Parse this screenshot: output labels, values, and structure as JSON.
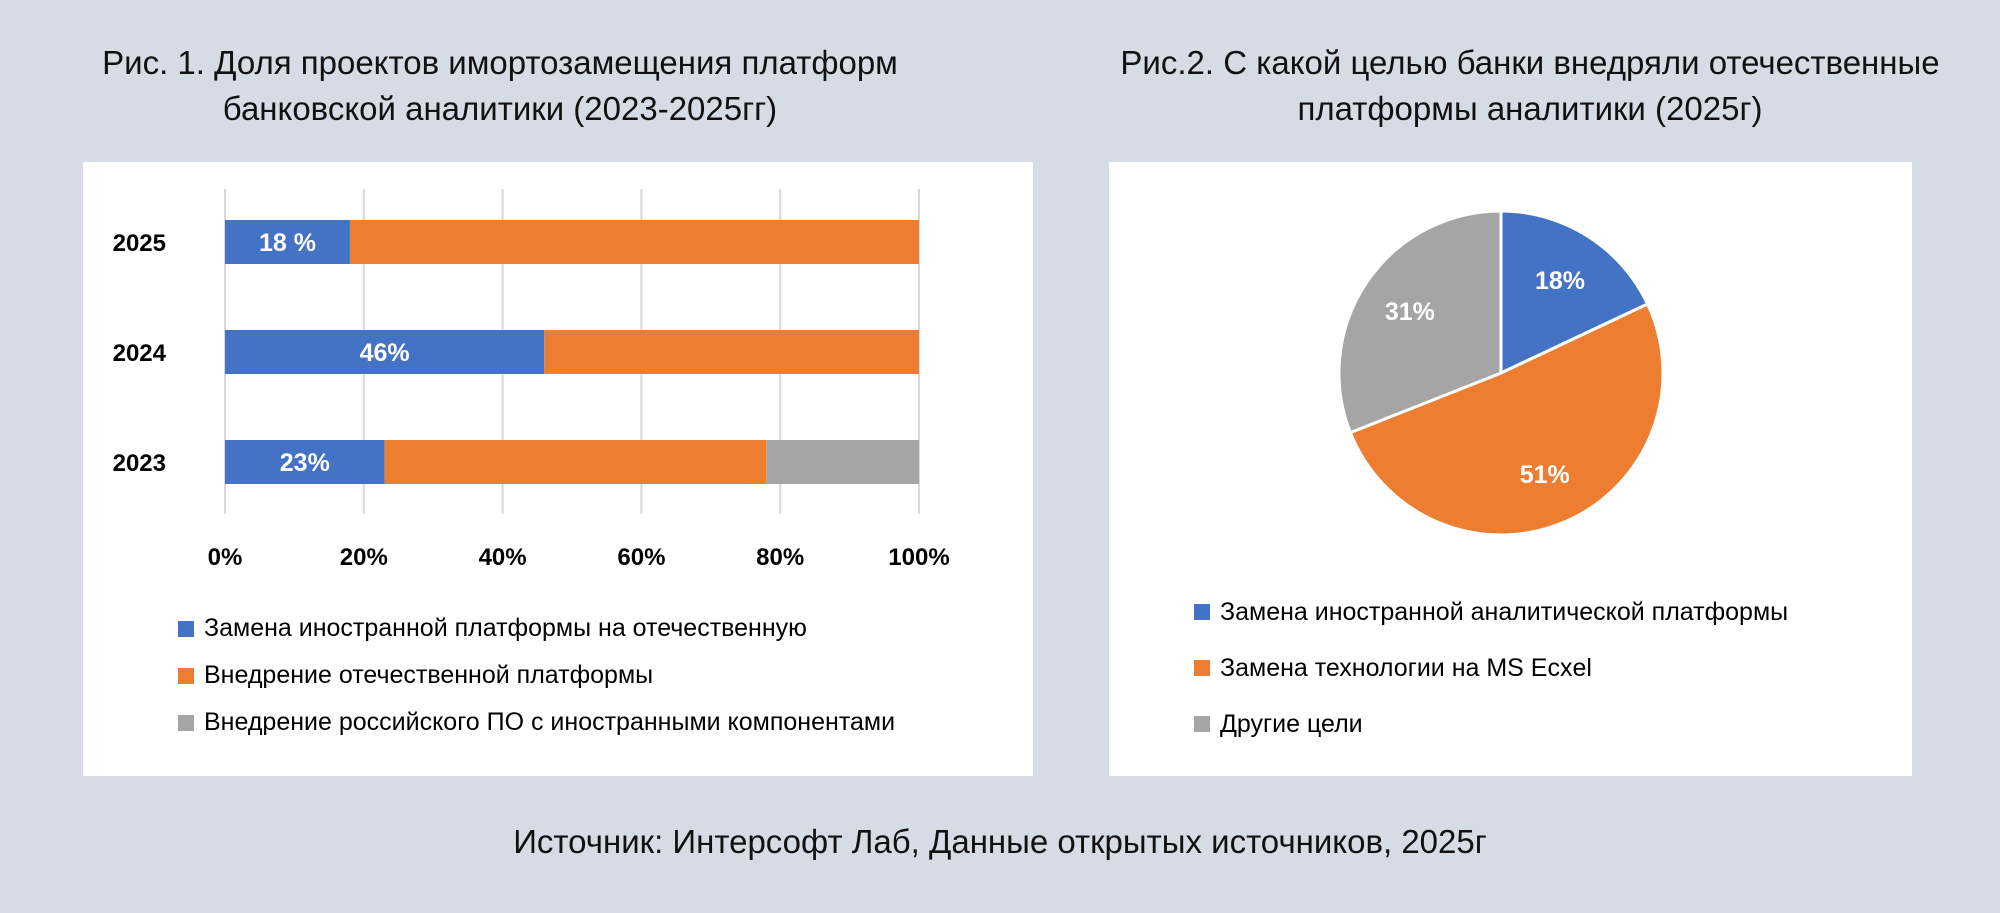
{
  "figure1": {
    "title_line1": "Рис. 1. Доля проектов имортозамещения платформ",
    "title_line2": "банковской аналитики (2023-2025гг)"
  },
  "figure2": {
    "title_line1": "Рис.2. С какой целью банки внедряли отечественные",
    "title_line2": "платформы аналитики (2025г)"
  },
  "source": "Источник: Интерсофт Лаб,  Данные открытых источников, 2025г",
  "chart_data": [
    {
      "type": "bar",
      "orientation": "horizontal",
      "stacked": "100%",
      "title": "Рис. 1. Доля проектов имортозамещения платформ банковской аналитики (2023-2025гг)",
      "categories": [
        "2025",
        "2024",
        "2023"
      ],
      "series": [
        {
          "name": "Замена иностранной платформы на отечественную",
          "color": "#4472c4",
          "values": [
            18,
            46,
            23
          ],
          "labels": [
            "18 %",
            "46%",
            "23%"
          ]
        },
        {
          "name": "Внедрение отечественной платформы",
          "color": "#ed7d31",
          "values": [
            82,
            54,
            55
          ]
        },
        {
          "name": "Внедрение российского ПО с иностранными компонентами",
          "color": "#a5a5a5",
          "values": [
            0,
            0,
            22
          ]
        }
      ],
      "xlim": [
        0,
        100
      ],
      "x_ticks": [
        "0%",
        "20%",
        "40%",
        "60%",
        "80%",
        "100%"
      ],
      "grid": true,
      "legend": "bottom"
    },
    {
      "type": "pie",
      "title": "Рис.2. С какой целью банки внедряли отечественные платформы аналитики (2025г)",
      "categories": [
        "Замена иностранной аналитической платформы",
        "Замена технологии на  MS Ecxel",
        "Другие цели"
      ],
      "values": [
        18,
        51,
        31
      ],
      "labels": [
        "18%",
        "51%",
        "31%"
      ],
      "colors": [
        "#4472c4",
        "#ed7d31",
        "#a5a5a5"
      ],
      "legend": "bottom"
    }
  ]
}
